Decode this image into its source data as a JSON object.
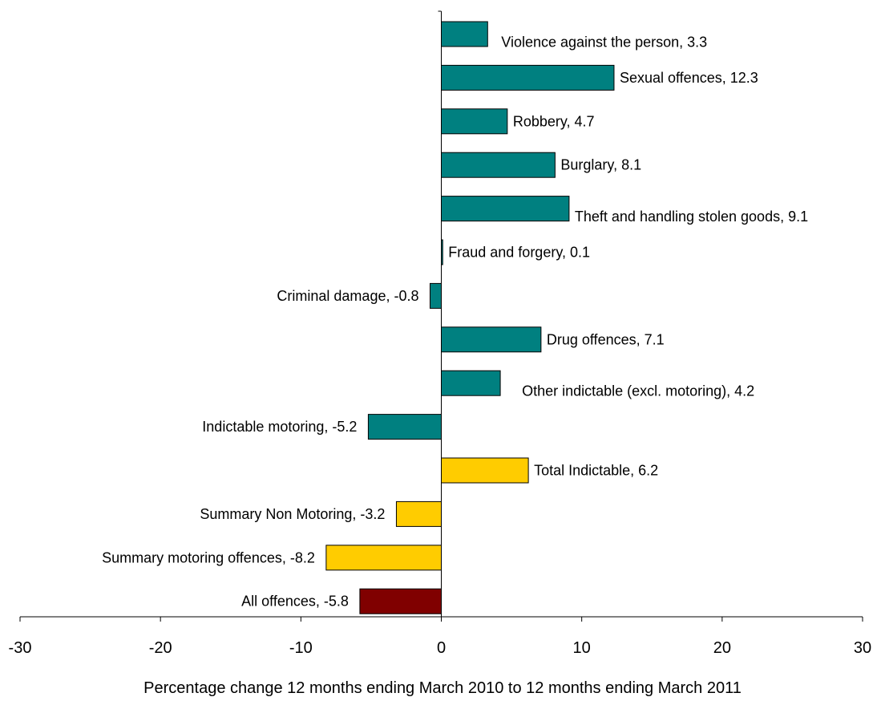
{
  "chart_data": {
    "type": "bar",
    "orientation": "horizontal",
    "title": "",
    "xlabel": "Percentage change 12 months ending March 2010 to 12 months ending March 2011",
    "ylabel": "",
    "xlim": [
      -30,
      30
    ],
    "xticks": [
      "-30",
      "-20",
      "-10",
      "0",
      "10",
      "20",
      "30"
    ],
    "grid": false,
    "legend": "none",
    "colors": {
      "offence_group": "#008080",
      "total_group": "#FFCC00",
      "all_offences": "#800000",
      "outline": "#000000"
    },
    "categories": [
      "Violence against the person",
      "Sexual offences",
      "Robbery",
      "Burglary",
      "Theft and handling stolen goods",
      "Fraud and forgery",
      "Criminal damage",
      "Drug offences",
      "Other indictable (excl. motoring)",
      "Indictable motoring",
      "Total Indictable",
      "Summary Non Motoring",
      "Summary motoring offences",
      "All offences"
    ],
    "values": [
      3.3,
      12.3,
      4.7,
      8.1,
      9.1,
      0.1,
      -0.8,
      7.1,
      4.2,
      -5.2,
      6.2,
      -3.2,
      -8.2,
      -5.8
    ],
    "data_labels": [
      "Violence against the person, 3.3",
      "Sexual offences, 12.3",
      "Robbery, 4.7",
      "Burglary, 8.1",
      "Theft and handling stolen goods, 9.1",
      "Fraud and forgery, 0.1",
      "Criminal damage, -0.8",
      "Drug offences, 7.1",
      "Other indictable (excl. motoring), 4.2",
      "Indictable motoring, -5.2",
      "Total Indictable, 6.2",
      "Summary Non Motoring, -3.2",
      "Summary motoring offences, -8.2",
      "All offences, -5.8"
    ],
    "bar_groups": [
      "offence_group",
      "offence_group",
      "offence_group",
      "offence_group",
      "offence_group",
      "offence_group",
      "offence_group",
      "offence_group",
      "offence_group",
      "offence_group",
      "total_group",
      "total_group",
      "total_group",
      "all_offences"
    ]
  }
}
